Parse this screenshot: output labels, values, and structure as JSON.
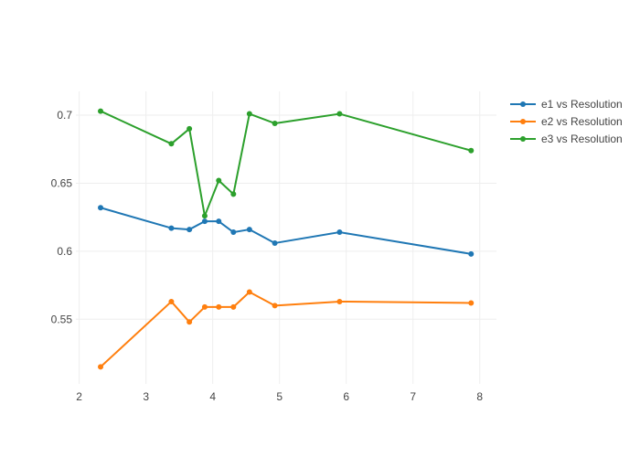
{
  "chart_data": {
    "type": "line",
    "title": "",
    "xlabel": "",
    "ylabel": "",
    "xlim": [
      1.95,
      8.25
    ],
    "ylim": [
      0.5025,
      0.7175
    ],
    "x_ticks": [
      2,
      3,
      4,
      5,
      6,
      7,
      8
    ],
    "x_tick_labels": [
      "2",
      "3",
      "4",
      "5",
      "6",
      "7",
      "8"
    ],
    "y_ticks": [
      0.55,
      0.6,
      0.65,
      0.7
    ],
    "y_tick_labels": [
      "0.55",
      "0.6",
      "0.65",
      "0.7"
    ],
    "grid": true,
    "legend_position": "top-right",
    "x": [
      2.32,
      3.38,
      3.65,
      3.88,
      4.09,
      4.31,
      4.55,
      4.93,
      5.9,
      7.87
    ],
    "series": [
      {
        "name": "e1 vs Resolution",
        "color": "#1f77b4",
        "values": [
          0.632,
          0.617,
          0.616,
          0.622,
          0.622,
          0.614,
          0.616,
          0.606,
          0.614,
          0.598
        ]
      },
      {
        "name": "e2 vs Resolution",
        "color": "#ff7f0e",
        "values": [
          0.515,
          0.563,
          0.548,
          0.559,
          0.559,
          0.559,
          0.57,
          0.56,
          0.563,
          0.562
        ]
      },
      {
        "name": "e3 vs Resolution",
        "color": "#2ca02c",
        "values": [
          0.703,
          0.679,
          0.69,
          0.626,
          0.652,
          0.642,
          0.701,
          0.694,
          0.701,
          0.674
        ]
      }
    ]
  }
}
